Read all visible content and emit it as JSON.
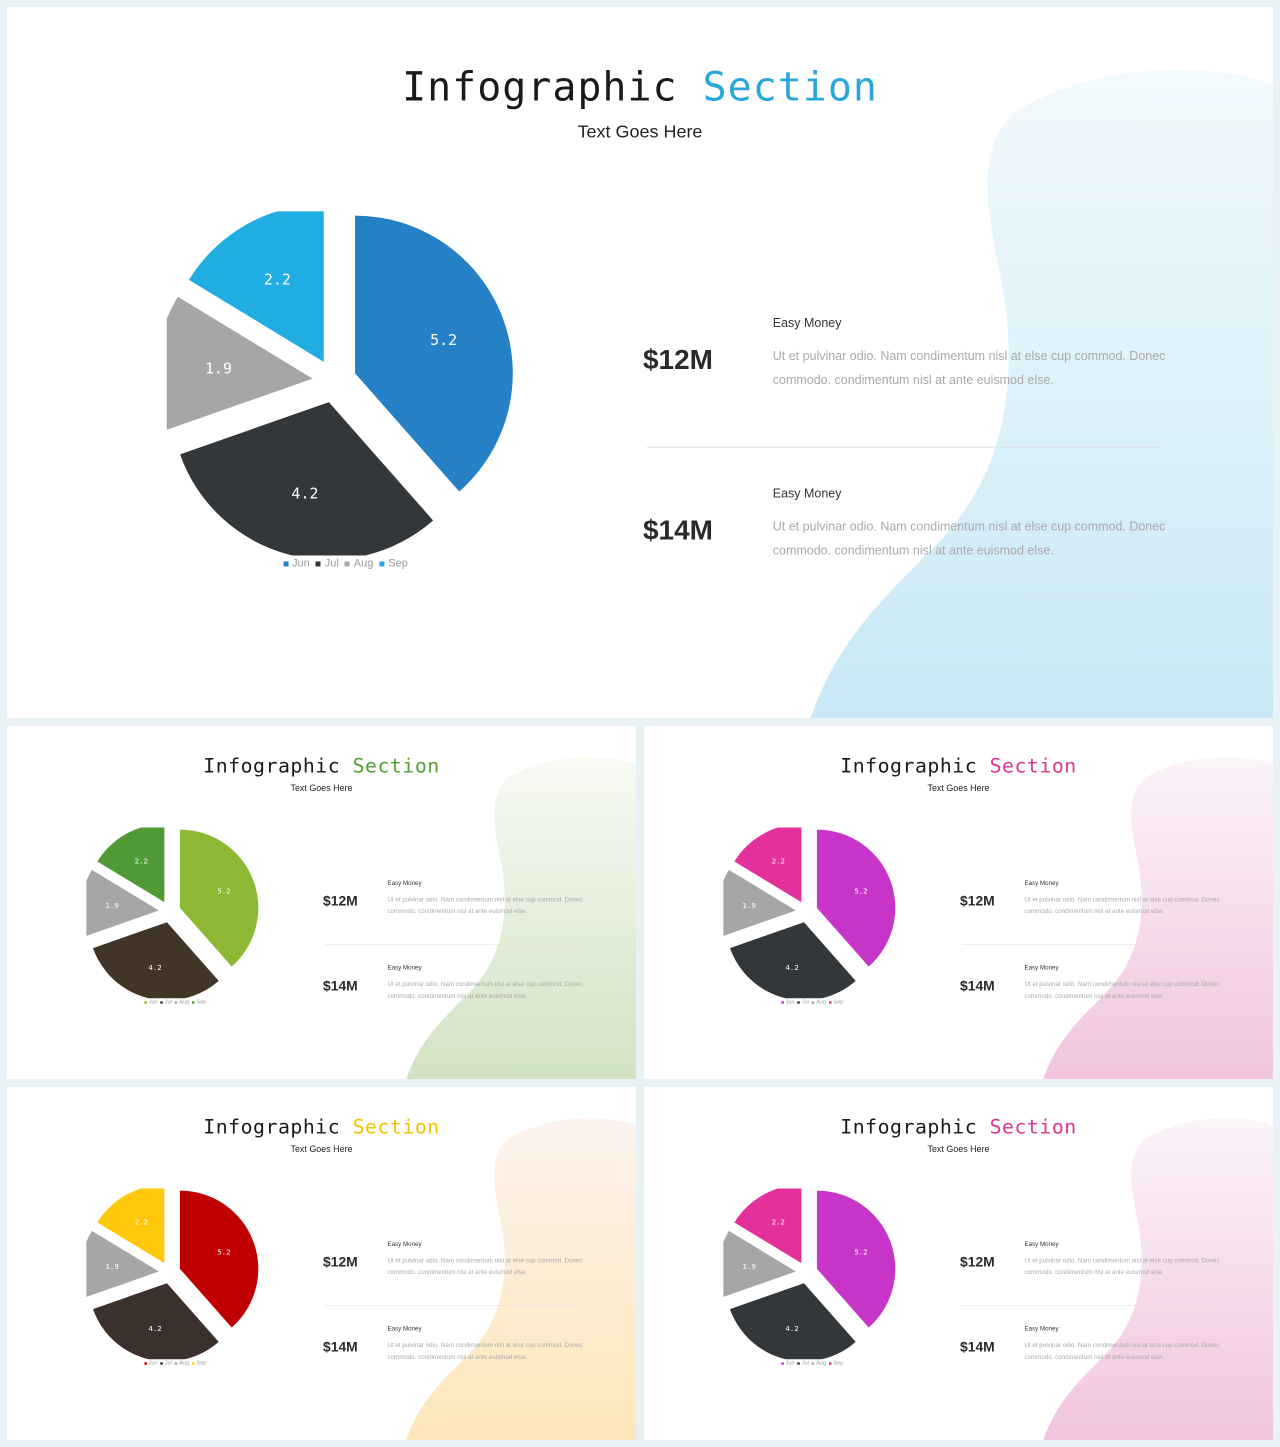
{
  "slides": [
    {
      "title_main": "Infographic",
      "title_accent": "Section",
      "subtitle": "Text Goes Here",
      "accent": "#29a7dd",
      "wave": [
        "#f2fafd",
        "#c8e8f6"
      ],
      "stats": [
        {
          "value": "$12M",
          "heading": "Easy Money",
          "text": "Ut et pulvinar odio. Nam condimentum nisl at else cup commod. Donec commodo. condimentum nisl at ante euismod else."
        },
        {
          "value": "$14M",
          "heading": "Easy Money",
          "text": "Ut et pulvinar odio. Nam condimentum nisl at else cup commod. Donec commodo. condimentum nisl at ante euismod else."
        }
      ],
      "chart_data": {
        "type": "pie",
        "labels": [
          "Jun",
          "Jul",
          "Aug",
          "Sep"
        ],
        "values": [
          5.2,
          4.2,
          1.9,
          2.2
        ],
        "colors": [
          "#2680c6",
          "#33373a",
          "#a6a6a6",
          "#20ade2"
        ]
      }
    },
    {
      "title_main": "Infographic",
      "title_accent": "Section",
      "subtitle": "Text Goes Here",
      "accent": "#54a035",
      "wave": [
        "#f8faf3",
        "#d1e3c4"
      ],
      "stats": [
        {
          "value": "$12M",
          "heading": "Easy Money",
          "text": "Ut et pulvinar odio. Nam condimentum nisl at else cup commod. Donec commodo. condimentum nisl at ante euismod else."
        },
        {
          "value": "$14M",
          "heading": "Easy Money",
          "text": "Ut et pulvinar odio. Nam condimentum nisl at else cup commod. Donec commodo. condimentum nisl at ante euismod else."
        }
      ],
      "chart_data": {
        "type": "pie",
        "labels": [
          "Jun",
          "Jul",
          "Aug",
          "Sep"
        ],
        "values": [
          5.2,
          4.2,
          1.9,
          2.2
        ],
        "colors": [
          "#8cb833",
          "#403527",
          "#a6a6a6",
          "#4f9a35"
        ]
      }
    },
    {
      "title_main": "Infographic",
      "title_accent": "Section",
      "subtitle": "Text Goes Here",
      "accent": "#d9368f",
      "wave": [
        "#fbf4f9",
        "#f2c4df"
      ],
      "stats": [
        {
          "value": "$12M",
          "heading": "Easy Money",
          "text": "Ut et pulvinar odio. Nam condimentum nisl at else cup commod. Donec commodo. condimentum nisl at ante euismod else."
        },
        {
          "value": "$14M",
          "heading": "Easy Money",
          "text": "Ut et pulvinar odio. Nam condimentum nisl at else cup commod. Donec commodo. condimentum nisl at ante euismod else."
        }
      ],
      "chart_data": {
        "type": "pie",
        "labels": [
          "Jun",
          "Jul",
          "Aug",
          "Sep"
        ],
        "values": [
          5.2,
          4.2,
          1.9,
          2.2
        ],
        "colors": [
          "#c634c8",
          "#33373a",
          "#a6a6a6",
          "#e3309a"
        ]
      }
    },
    {
      "title_main": "Infographic",
      "title_accent": "Section",
      "subtitle": "Text Goes Here",
      "accent": "#f2c200",
      "wave": [
        "#fdf3ef",
        "#fde6b8"
      ],
      "stats": [
        {
          "value": "$12M",
          "heading": "Easy Money",
          "text": "Ut et pulvinar odio. Nam condimentum nisl at else cup commod. Donec commodo. condimentum nisl at ante euismod else."
        },
        {
          "value": "$14M",
          "heading": "Easy Money",
          "text": "Ut et pulvinar odio. Nam condimentum nisl at else cup commod. Donec commodo. condimentum nisl at ante euismod else."
        }
      ],
      "chart_data": {
        "type": "pie",
        "labels": [
          "Jun",
          "Jul",
          "Aug",
          "Sep"
        ],
        "values": [
          5.2,
          4.2,
          1.9,
          2.2
        ],
        "colors": [
          "#c00000",
          "#3b302b",
          "#a6a6a6",
          "#ffc80a"
        ]
      }
    },
    {
      "title_main": "Infographic",
      "title_accent": "Section",
      "subtitle": "Text Goes Here",
      "accent": "#d9368f",
      "wave": [
        "#fbf4f9",
        "#f2c4df"
      ],
      "stats": [
        {
          "value": "$12M",
          "heading": "Easy Money",
          "text": "Ut et pulvinar odio. Nam condimentum nisl at else cup commod. Donec commodo. condimentum nisl at ante euismod else."
        },
        {
          "value": "$14M",
          "heading": "Easy Money",
          "text": "Ut et pulvinar odio. Nam condimentum nisl at else cup commod. Donec commodo. condimentum nisl at ante euismod else."
        }
      ],
      "chart_data": {
        "type": "pie",
        "labels": [
          "Jun",
          "Jul",
          "Aug",
          "Sep"
        ],
        "values": [
          5.2,
          4.2,
          1.9,
          2.2
        ],
        "colors": [
          "#c634c8",
          "#33373a",
          "#a6a6a6",
          "#e3309a"
        ]
      }
    }
  ]
}
